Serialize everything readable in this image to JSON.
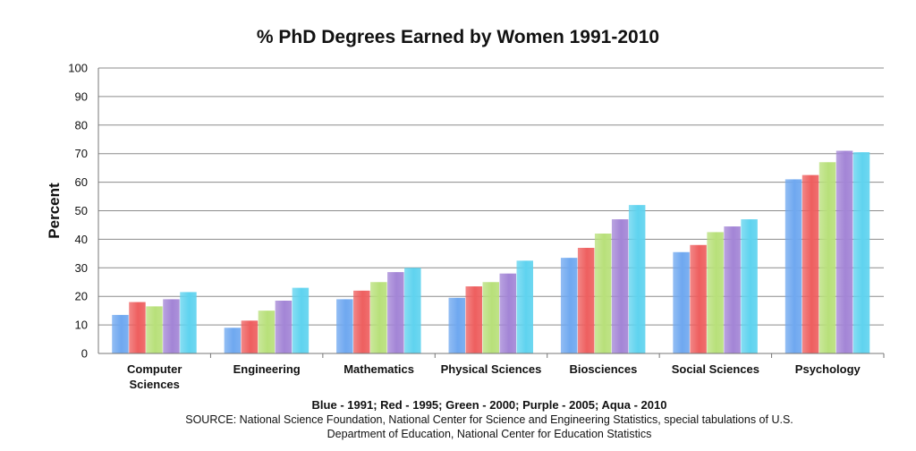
{
  "chart_data": {
    "type": "bar",
    "title": "% PhD Degrees Earned by Women 1991-2010",
    "ylabel": "Percent",
    "xlabel": "",
    "ylim": [
      0,
      100
    ],
    "yticks": [
      0,
      10,
      20,
      30,
      40,
      50,
      60,
      70,
      80,
      90,
      100
    ],
    "grid": true,
    "categories": [
      "Computer Sciences",
      "Engineering",
      "Mathematics",
      "Physical Sciences",
      "Biosciences",
      "Social Sciences",
      "Psychology"
    ],
    "category_lines": [
      [
        "Computer",
        "Sciences"
      ],
      [
        "Engineering"
      ],
      [
        "Mathematics"
      ],
      [
        "Physical Sciences"
      ],
      [
        "Biosciences"
      ],
      [
        "Social Sciences"
      ],
      [
        "Psychology"
      ]
    ],
    "series": [
      {
        "values": [
          13.5,
          9,
          19,
          19.5,
          33.5,
          35.5,
          61
        ],
        "color": "#6fa8f0"
      },
      {
        "values": [
          18,
          11.5,
          22,
          23.5,
          37,
          38,
          62.5
        ],
        "color": "#ee5f5f"
      },
      {
        "values": [
          16.5,
          15,
          25,
          25,
          42,
          42.5,
          67
        ],
        "color": "#b8e07a"
      },
      {
        "values": [
          19,
          18.5,
          28.5,
          28,
          47,
          44.5,
          71
        ],
        "color": "#a385d6"
      },
      {
        "values": [
          21.5,
          23,
          30,
          32.5,
          52,
          47,
          70.5
        ],
        "color": "#5fd3ef"
      }
    ],
    "legend_text": "Blue - 1991; Red - 1995; Green - 2000; Purple - 2005; Aqua - 2010",
    "source_lines": [
      "SOURCE:  National Science Foundation, National Center for Science and Engineering Statistics, special tabulations of U.S.",
      "Department of Education, National Center for Education Statistics"
    ]
  }
}
